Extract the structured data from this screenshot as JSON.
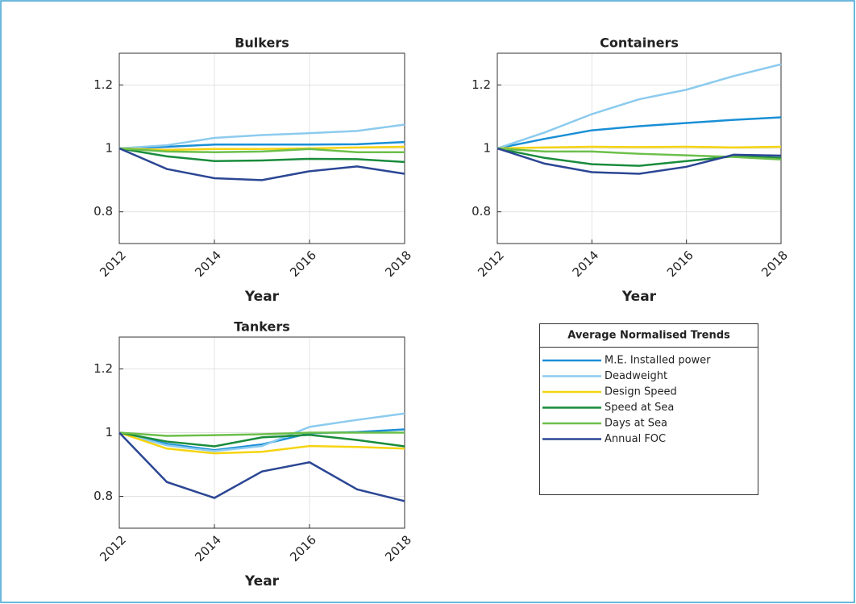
{
  "legend": {
    "title": "Average Normalised Trends"
  },
  "chart_data": [
    {
      "type": "line",
      "title": "Bulkers",
      "x_label": "Year",
      "x": [
        2012,
        2013,
        2014,
        2015,
        2016,
        2017,
        2018
      ],
      "xlim": [
        2012,
        2018
      ],
      "xticks": [
        2012,
        2014,
        2016,
        2018
      ],
      "ylim": [
        0.7,
        1.3
      ],
      "yticks": [
        0.8,
        1,
        1.2
      ],
      "grid": true,
      "series": [
        {
          "name": "M.E. Installed power",
          "color": "#1a8fd6",
          "values": [
            1,
            1.005,
            1.012,
            1.012,
            1.012,
            1.013,
            1.02
          ]
        },
        {
          "name": "Deadweight",
          "color": "#8ccbee",
          "values": [
            1,
            1.01,
            1.033,
            1.042,
            1.048,
            1.055,
            1.075
          ]
        },
        {
          "name": "Design Speed",
          "color": "#f5d410",
          "values": [
            1,
            0.995,
            0.998,
            0.998,
            1.0,
            1.003,
            1.005
          ]
        },
        {
          "name": "Speed at Sea",
          "color": "#1a8c3c",
          "values": [
            1,
            0.975,
            0.96,
            0.962,
            0.967,
            0.966,
            0.957
          ]
        },
        {
          "name": "Days at Sea",
          "color": "#6cbf4a",
          "values": [
            1,
            0.99,
            0.988,
            0.99,
            0.998,
            0.988,
            0.988
          ]
        },
        {
          "name": "Annual FOC",
          "color": "#2b4694",
          "values": [
            1,
            0.935,
            0.906,
            0.9,
            0.928,
            0.943,
            0.92
          ]
        }
      ]
    },
    {
      "type": "line",
      "title": "Containers",
      "x_label": "Year",
      "x": [
        2012,
        2013,
        2014,
        2015,
        2016,
        2017,
        2018
      ],
      "xlim": [
        2012,
        2018
      ],
      "xticks": [
        2012,
        2014,
        2016,
        2018
      ],
      "ylim": [
        0.7,
        1.3
      ],
      "yticks": [
        0.8,
        1,
        1.2
      ],
      "grid": true,
      "series": [
        {
          "name": "M.E. Installed power",
          "color": "#1a8fd6",
          "values": [
            1,
            1.03,
            1.057,
            1.07,
            1.08,
            1.09,
            1.098
          ]
        },
        {
          "name": "Deadweight",
          "color": "#8ccbee",
          "values": [
            1,
            1.05,
            1.108,
            1.155,
            1.185,
            1.228,
            1.265
          ]
        },
        {
          "name": "Design Speed",
          "color": "#f5d410",
          "values": [
            1,
            1.003,
            1.005,
            1.004,
            1.005,
            1.003,
            1.005
          ]
        },
        {
          "name": "Speed at Sea",
          "color": "#1a8c3c",
          "values": [
            1,
            0.97,
            0.95,
            0.945,
            0.96,
            0.975,
            0.97
          ]
        },
        {
          "name": "Days at Sea",
          "color": "#6cbf4a",
          "values": [
            1,
            0.99,
            0.99,
            0.983,
            0.978,
            0.973,
            0.965
          ]
        },
        {
          "name": "Annual FOC",
          "color": "#2b4694",
          "values": [
            1,
            0.952,
            0.925,
            0.92,
            0.942,
            0.98,
            0.977
          ]
        }
      ]
    },
    {
      "type": "line",
      "title": "Tankers",
      "x_label": "Year",
      "x": [
        2012,
        2013,
        2014,
        2015,
        2016,
        2017,
        2018
      ],
      "xlim": [
        2012,
        2018
      ],
      "xticks": [
        2012,
        2014,
        2016,
        2018
      ],
      "ylim": [
        0.7,
        1.3
      ],
      "yticks": [
        0.8,
        1,
        1.2
      ],
      "grid": true,
      "series": [
        {
          "name": "M.E. Installed power",
          "color": "#1a8fd6",
          "values": [
            1,
            0.965,
            0.945,
            0.963,
            0.998,
            1.002,
            1.01
          ]
        },
        {
          "name": "Deadweight",
          "color": "#8ccbee",
          "values": [
            1,
            0.96,
            0.942,
            0.958,
            1.018,
            1.04,
            1.06
          ]
        },
        {
          "name": "Design Speed",
          "color": "#f5d410",
          "values": [
            1,
            0.95,
            0.935,
            0.94,
            0.958,
            0.955,
            0.95
          ]
        },
        {
          "name": "Speed at Sea",
          "color": "#1a8c3c",
          "values": [
            1,
            0.972,
            0.957,
            0.985,
            0.993,
            0.977,
            0.957
          ]
        },
        {
          "name": "Days at Sea",
          "color": "#6cbf4a",
          "values": [
            1,
            0.99,
            0.992,
            0.995,
            1.0,
            1.0,
            1.0
          ]
        },
        {
          "name": "Annual FOC",
          "color": "#2b4694",
          "values": [
            1,
            0.845,
            0.795,
            0.878,
            0.907,
            0.822,
            0.785
          ]
        }
      ]
    }
  ]
}
